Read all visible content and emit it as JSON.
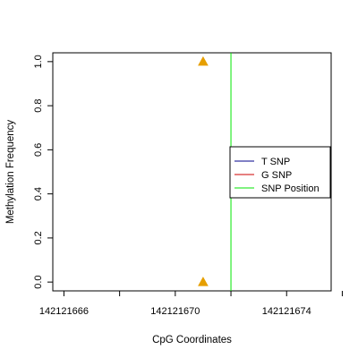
{
  "chart_data": {
    "type": "scatter",
    "title": "",
    "xlabel": "CpG Coordinates",
    "ylabel": "Methylation Frequency",
    "xlim": [
      142121665.6,
      142121675.6
    ],
    "ylim": [
      -0.04,
      1.04
    ],
    "x_ticks": [
      142121666,
      142121668,
      142121670,
      142121672,
      142121674,
      142121676
    ],
    "x_tick_labels": [
      {
        "value": 142121666,
        "label": "142121666"
      },
      {
        "value": 142121670,
        "label": "142121670"
      },
      {
        "value": 142121674,
        "label": "142121674"
      }
    ],
    "y_ticks": [
      {
        "value": 0.0,
        "label": "0.0"
      },
      {
        "value": 0.2,
        "label": "0.2"
      },
      {
        "value": 0.4,
        "label": "0.4"
      },
      {
        "value": 0.6,
        "label": "0.6"
      },
      {
        "value": 0.8,
        "label": "0.8"
      },
      {
        "value": 1.0,
        "label": "1.0"
      }
    ],
    "points": [
      {
        "x": 142121671,
        "y": 1.0,
        "color": "#E69F00",
        "shape": "triangle"
      },
      {
        "x": 142121671,
        "y": 0.0,
        "color": "#E69F00",
        "shape": "triangle"
      }
    ],
    "snp_position": {
      "x": 142121672,
      "color": "#00E600"
    },
    "grid": false,
    "legend_placement": "right",
    "legend": [
      {
        "label": "T SNP",
        "color": "#00008B"
      },
      {
        "label": "G SNP",
        "color": "#CD0000"
      },
      {
        "label": "SNP Position",
        "color": "#00E600"
      }
    ]
  }
}
